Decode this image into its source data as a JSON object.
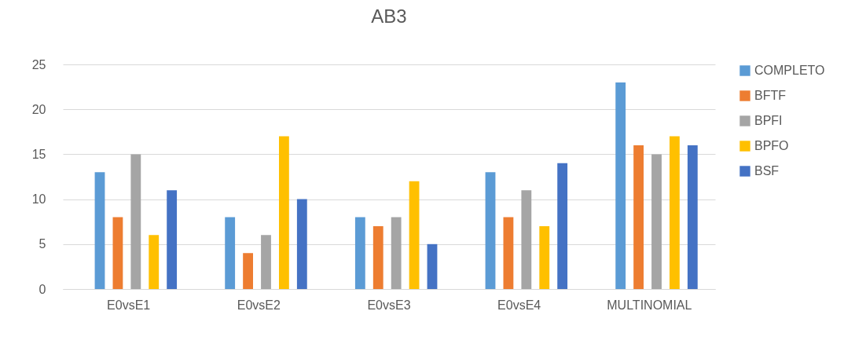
{
  "chart_data": {
    "type": "bar",
    "title": "AB3",
    "categories": [
      "E0vsE1",
      "E0vsE2",
      "E0vsE3",
      "E0vsE4",
      "MULTINOMIAL"
    ],
    "series": [
      {
        "name": "COMPLETO",
        "color": "#5b9bd5",
        "values": [
          13,
          8,
          8,
          13,
          23
        ]
      },
      {
        "name": "BFTF",
        "color": "#ed7d31",
        "values": [
          8,
          4,
          7,
          8,
          16
        ]
      },
      {
        "name": "BPFI",
        "color": "#a5a5a5",
        "values": [
          15,
          6,
          8,
          11,
          15
        ]
      },
      {
        "name": "BPFO",
        "color": "#ffc000",
        "values": [
          6,
          17,
          12,
          7,
          17
        ]
      },
      {
        "name": "BSF",
        "color": "#4472c4",
        "values": [
          11,
          10,
          5,
          14,
          16
        ]
      }
    ],
    "ylim": [
      0,
      25
    ],
    "yticks": [
      0,
      5,
      10,
      15,
      20,
      25
    ],
    "grid": "y",
    "legend": "right"
  }
}
